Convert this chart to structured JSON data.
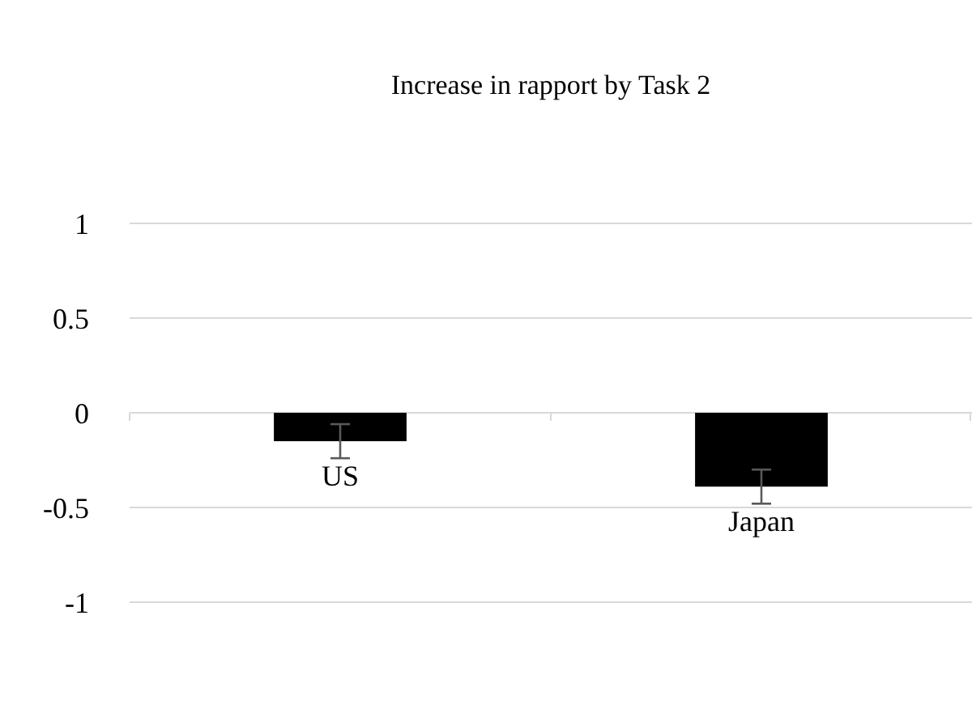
{
  "chart_data": {
    "type": "bar",
    "title": "Increase in rapport by Task 2",
    "categories": [
      "US",
      "Japan"
    ],
    "values": [
      -0.15,
      -0.39
    ],
    "errors": [
      0.09,
      0.09
    ],
    "color": "#000000",
    "ylim": [
      -1,
      1
    ],
    "yticks": [
      -1,
      -0.5,
      0,
      0.5,
      1
    ],
    "grid": "y"
  }
}
